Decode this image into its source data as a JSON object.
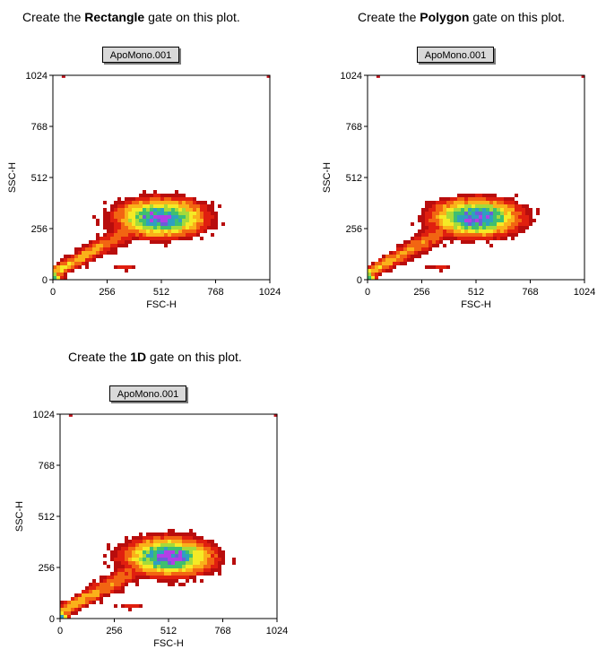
{
  "instructions": [
    {
      "prefix": "Create the ",
      "bold": "Rectangle",
      "suffix": " gate on this plot."
    },
    {
      "prefix": "Create the ",
      "bold": "Polygon",
      "suffix": " gate on this plot."
    },
    {
      "prefix": "Create the ",
      "bold": "1D",
      "suffix": " gate on this plot."
    }
  ],
  "chart_data": [
    {
      "type": "heatmap",
      "title": "ApoMono.001",
      "xlabel": "FSC-H",
      "ylabel": "SSC-H",
      "xlim": [
        0,
        1024
      ],
      "ylim": [
        0,
        1024
      ],
      "xticks": [
        0,
        256,
        512,
        768,
        1024
      ],
      "yticks": [
        0,
        256,
        512,
        768,
        1024
      ],
      "tick_labels": [
        "0",
        "256",
        "512",
        "768",
        "1024"
      ]
    },
    {
      "type": "heatmap",
      "title": "ApoMono.001",
      "xlabel": "FSC-H",
      "ylabel": "SSC-H",
      "xlim": [
        0,
        1024
      ],
      "ylim": [
        0,
        1024
      ],
      "xticks": [
        0,
        256,
        512,
        768,
        1024
      ],
      "yticks": [
        0,
        256,
        512,
        768,
        1024
      ],
      "tick_labels": [
        "0",
        "256",
        "512",
        "768",
        "1024"
      ]
    },
    {
      "type": "heatmap",
      "title": "ApoMono.001",
      "xlabel": "FSC-H",
      "ylabel": "SSC-H",
      "xlim": [
        0,
        1024
      ],
      "ylim": [
        0,
        1024
      ],
      "xticks": [
        0,
        256,
        512,
        768,
        1024
      ],
      "yticks": [
        0,
        256,
        512,
        768,
        1024
      ],
      "tick_labels": [
        "0",
        "256",
        "512",
        "768",
        "1024"
      ]
    }
  ],
  "density_colors": [
    "#b80d0d",
    "#e01f0f",
    "#f26512",
    "#fab11a",
    "#f5ea26",
    "#a6da3a",
    "#3fbf6f",
    "#2f9fc0",
    "#6a5fd8",
    "#b23fe6"
  ]
}
